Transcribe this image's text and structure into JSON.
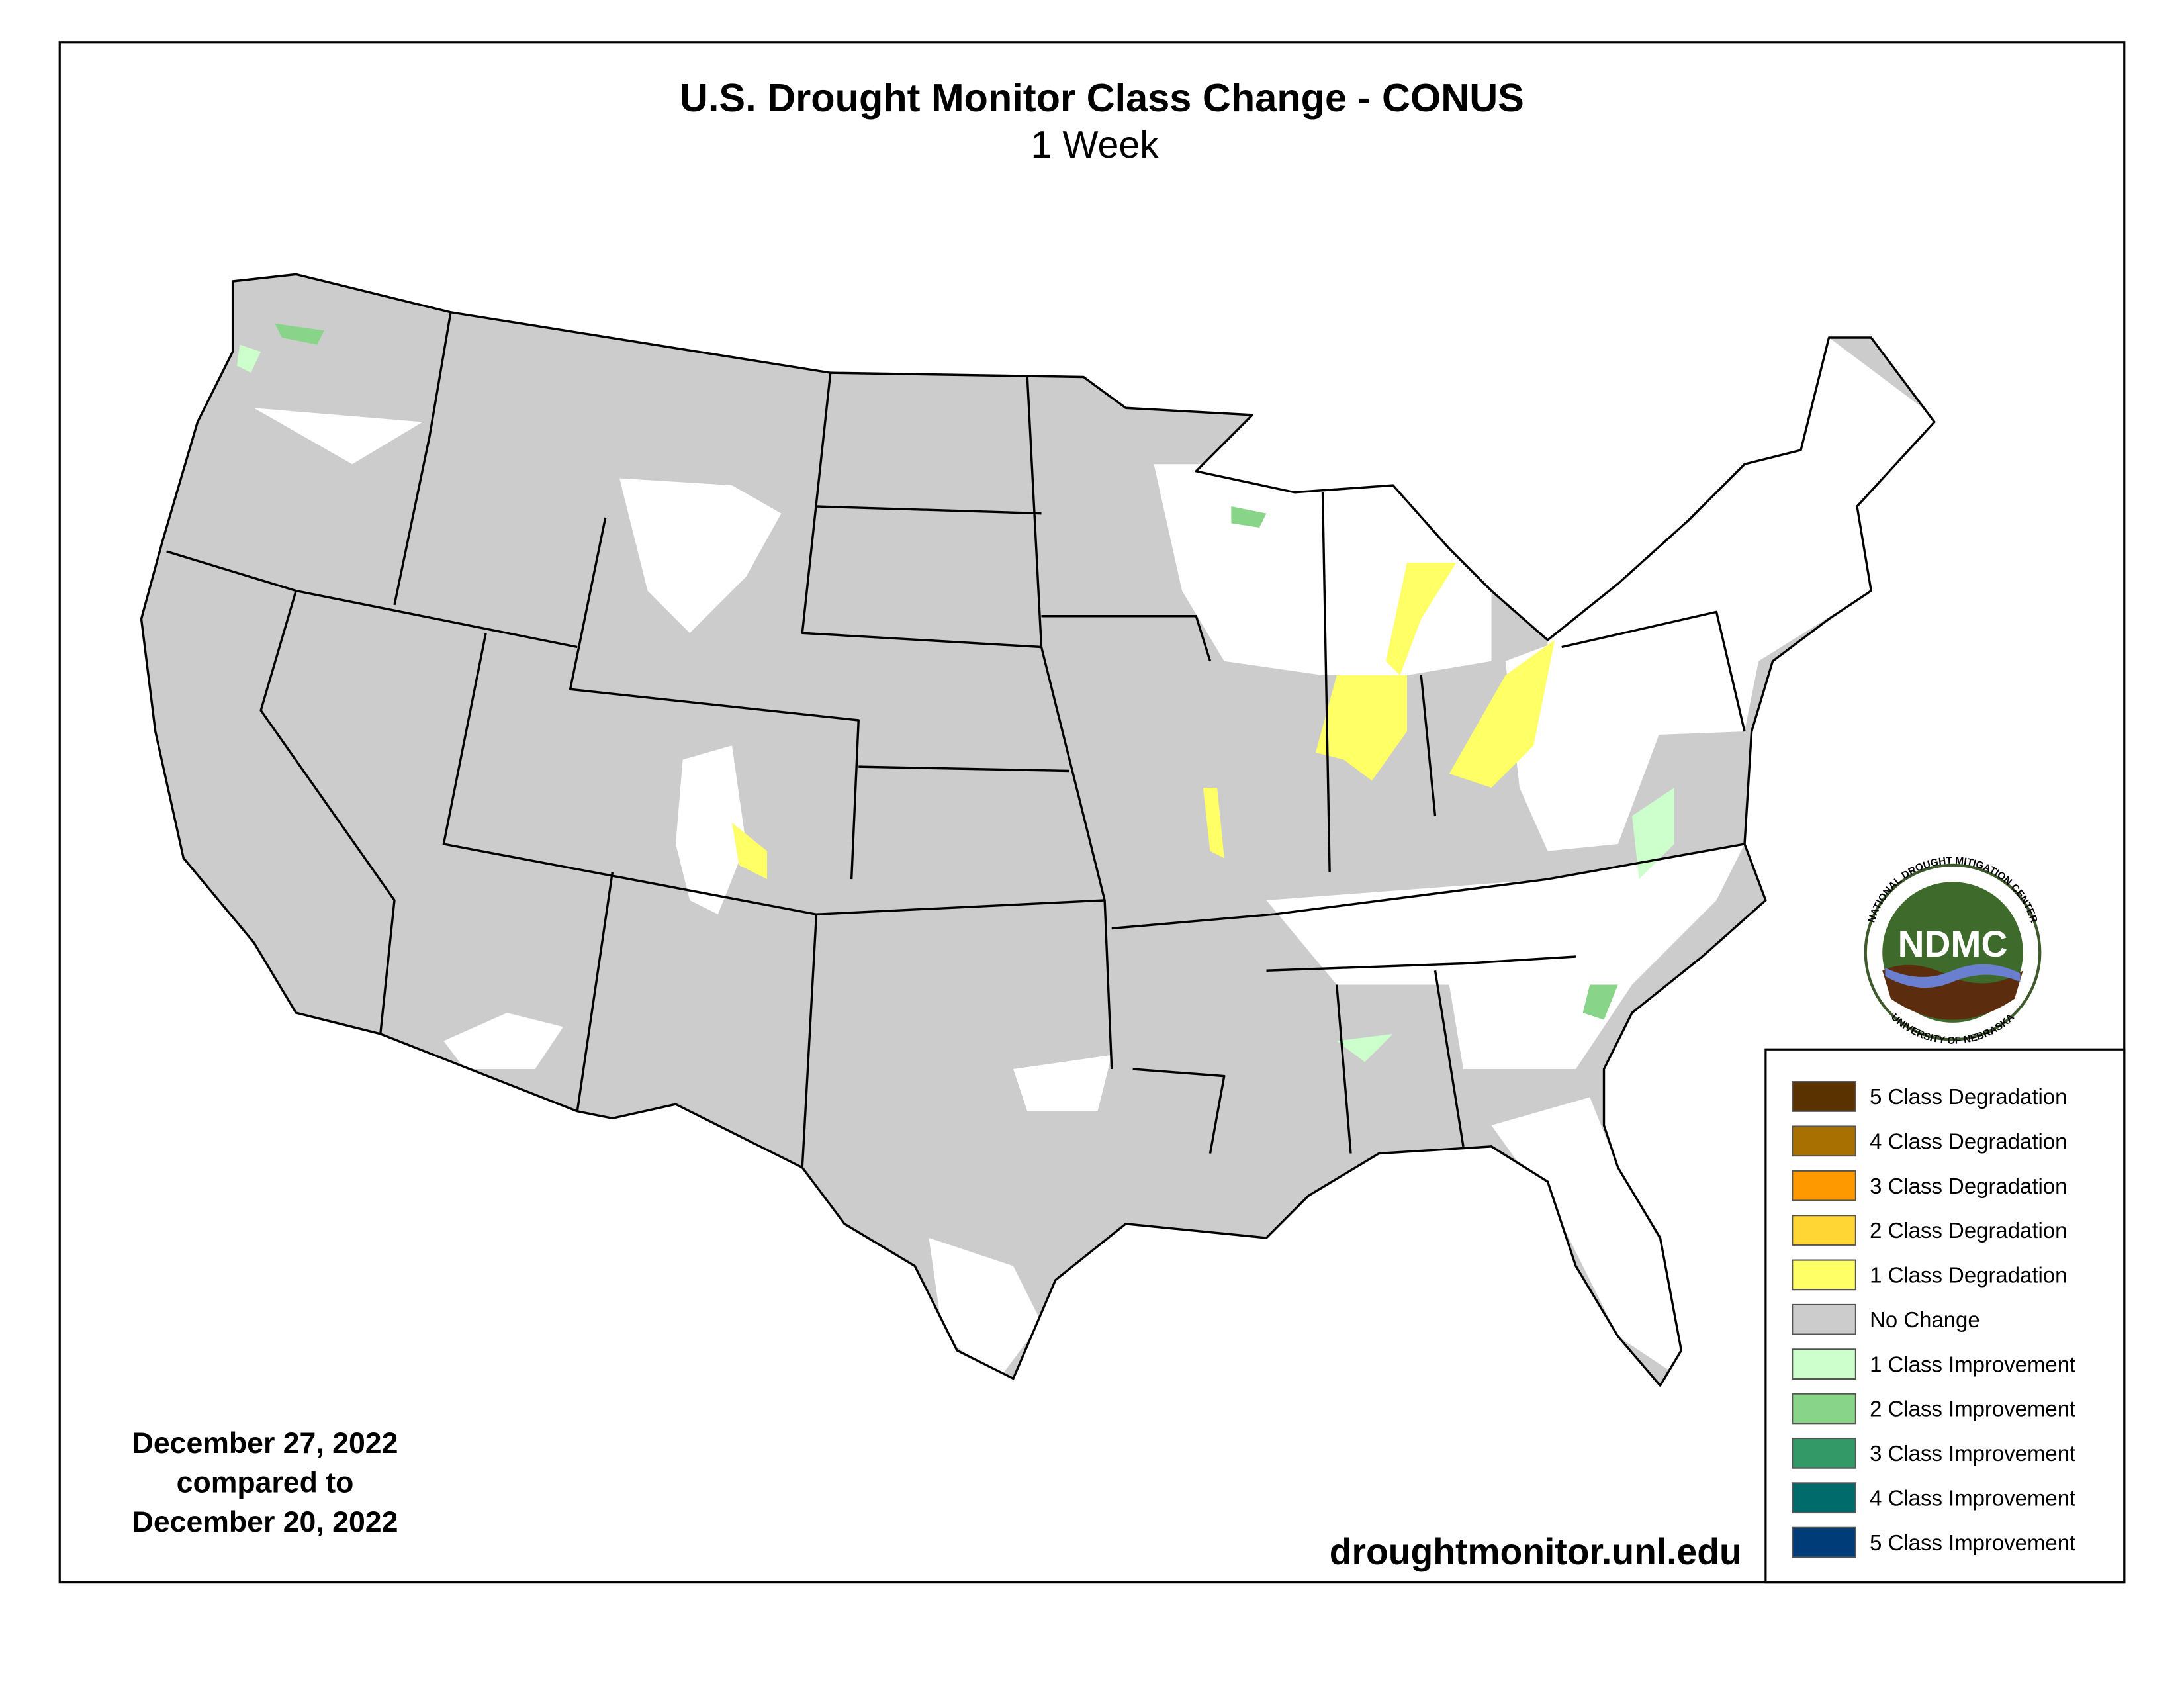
{
  "title": "U.S. Drought Monitor Class Change - CONUS",
  "subtitle": "1 Week",
  "legend": [
    {
      "label": "5 Class Degradation",
      "color": "#5a3200"
    },
    {
      "label": "4 Class Degradation",
      "color": "#a87000"
    },
    {
      "label": "3 Class Degradation",
      "color": "#ff9900"
    },
    {
      "label": "2 Class Degradation",
      "color": "#ffd633"
    },
    {
      "label": "1 Class Degradation",
      "color": "#ffff66"
    },
    {
      "label": "No Change",
      "color": "#cccccc"
    },
    {
      "label": "1 Class Improvement",
      "color": "#ccffcc"
    },
    {
      "label": "2 Class Improvement",
      "color": "#88d488"
    },
    {
      "label": "3 Class Improvement",
      "color": "#339966"
    },
    {
      "label": "4 Class Improvement",
      "color": "#006b6b"
    },
    {
      "label": "5 Class Improvement",
      "color": "#003c78"
    }
  ],
  "date_lines": [
    "December 27, 2022",
    "compared to",
    "December 20, 2022"
  ],
  "url": "droughtmonitor.unl.edu",
  "logo": {
    "acronym": "NDMC",
    "top_text": "NATIONAL DROUGHT MITIGATION CENTER",
    "bottom_text": "UNIVERSITY OF NEBRASKA"
  }
}
